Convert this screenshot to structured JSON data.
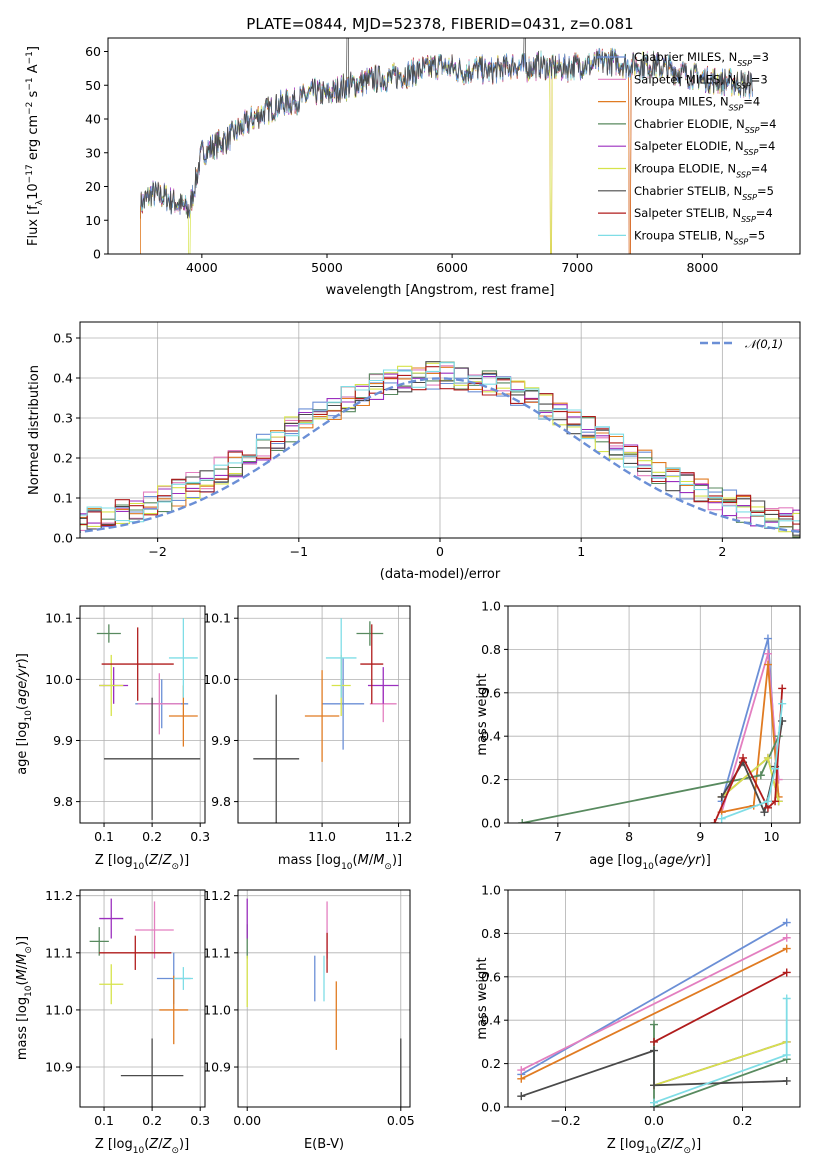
{
  "chart_data": [
    {
      "type": "line",
      "title": "PLATE=0844, MJD=52378, FIBERID=0431, z=0.081",
      "xlabel": "wavelength [Angstrom, rest frame]",
      "ylabel": "Flux [f_λ10^-17 erg cm^-2 s^-1 A^-1]",
      "xlim": [
        3250,
        8780
      ],
      "ylim": [
        0,
        64
      ],
      "xticks": [
        4000,
        5000,
        6000,
        7000,
        8000
      ],
      "yticks": [
        0,
        10,
        20,
        30,
        40,
        50,
        60
      ],
      "legend_position": "upper right",
      "grid": false,
      "legend": [
        {
          "label": "Chabrier MILES, N_SSP=3",
          "color": "#6b8fd6"
        },
        {
          "label": "Salpeter MILES, N_SSP=3",
          "color": "#e37fc0"
        },
        {
          "label": "Kroupa MILES, N_SSP=4",
          "color": "#e07b22"
        },
        {
          "label": "Chabrier ELODIE, N_SSP=4",
          "color": "#588a5f"
        },
        {
          "label": "Salpeter ELODIE, N_SSP=4",
          "color": "#9b2fbf"
        },
        {
          "label": "Kroupa ELODIE, N_SSP=4",
          "color": "#d6e34a"
        },
        {
          "label": "Chabrier STELIB, N_SSP=5",
          "color": "#4a4a4a"
        },
        {
          "label": "Salpeter STELIB, N_SSP=4",
          "color": "#b01c1c"
        },
        {
          "label": "Kroupa STELIB, N_SSP=5",
          "color": "#7fdde6"
        }
      ],
      "continuum_samples": {
        "x": [
          3500,
          3600,
          3700,
          3800,
          3900,
          4000,
          4100,
          4200,
          4300,
          4400,
          4500,
          4600,
          4700,
          4800,
          4900,
          5000,
          5100,
          5200,
          5300,
          5400,
          5500,
          5600,
          5700,
          5800,
          5900,
          6000,
          6100,
          6200,
          6300,
          6400,
          6500,
          6600,
          6700,
          6800,
          6900,
          7000,
          7100,
          7200,
          7300,
          7400,
          7600,
          7800,
          8000,
          8200,
          8400
        ],
        "y": [
          14,
          18,
          17,
          15,
          13,
          30,
          32,
          34,
          37,
          40,
          42,
          44,
          45,
          46,
          48,
          47,
          49,
          50,
          51,
          52,
          52,
          53,
          54,
          55,
          56,
          55,
          54,
          55,
          54,
          55,
          56,
          55,
          56,
          55,
          55,
          56,
          56,
          57,
          57,
          56,
          56,
          54,
          52,
          51,
          50
        ]
      }
    },
    {
      "type": "histogram",
      "xlabel": "(data-model)/error",
      "ylabel": "Normed distribution",
      "xlim": [
        -2.55,
        2.55
      ],
      "ylim": [
        0,
        0.54
      ],
      "xticks": [
        -2,
        -1,
        0,
        1,
        2
      ],
      "yticks": [
        0.0,
        0.1,
        0.2,
        0.3,
        0.4,
        0.5
      ],
      "grid": true,
      "legend": "𝒩(0,1)",
      "bin_width": 0.1,
      "bins_from": -2.6,
      "bins_to": 2.6,
      "reference_curve": {
        "name": "𝒩(0,1)",
        "color": "#6b8fd6",
        "style": "dashed"
      },
      "series_colors": [
        "#6b8fd6",
        "#e37fc0",
        "#e07b22",
        "#588a5f",
        "#9b2fbf",
        "#d6e34a",
        "#4a4a4a",
        "#b01c1c",
        "#7fdde6"
      ]
    },
    {
      "type": "scatter",
      "xlabel": "Z [log10(Z/Z⊙)]",
      "ylabel": "age  [log10(age/yr)]",
      "xlim": [
        0.05,
        0.31
      ],
      "ylim": [
        9.765,
        10.12
      ],
      "xticks": [
        0.1,
        0.2,
        0.3
      ],
      "yticks": [
        9.8,
        9.9,
        10.0,
        10.1
      ],
      "grid": true,
      "points": [
        {
          "x": 0.22,
          "y": 9.96,
          "xerr": 0.055,
          "yerr": 0.04,
          "color": "#6b8fd6"
        },
        {
          "x": 0.215,
          "y": 9.96,
          "xerr": 0.045,
          "yerr": 0.05,
          "color": "#e37fc0"
        },
        {
          "x": 0.265,
          "y": 9.94,
          "xerr": 0.03,
          "yerr": 0.05,
          "color": "#e07b22"
        },
        {
          "x": 0.11,
          "y": 10.075,
          "xerr": 0.025,
          "yerr": 0.015,
          "color": "#588a5f"
        },
        {
          "x": 0.12,
          "y": 9.99,
          "xerr": 0.03,
          "yerr": 0.03,
          "color": "#9b2fbf"
        },
        {
          "x": 0.115,
          "y": 9.99,
          "xerr": 0.025,
          "yerr": 0.05,
          "color": "#d6e34a"
        },
        {
          "x": 0.2,
          "y": 9.87,
          "xerr": 0.1,
          "yerr": 0.1,
          "color": "#4a4a4a"
        },
        {
          "x": 0.17,
          "y": 10.025,
          "xerr": 0.075,
          "yerr": 0.06,
          "color": "#b01c1c"
        },
        {
          "x": 0.265,
          "y": 10.035,
          "xerr": 0.03,
          "yerr": 0.065,
          "color": "#7fdde6"
        }
      ]
    },
    {
      "type": "scatter",
      "xlabel": "mass [log10(M/M⊙)]",
      "xlim": [
        10.78,
        11.23
      ],
      "ylim": [
        9.765,
        10.12
      ],
      "xticks": [
        11.0,
        11.2
      ],
      "yticks": [
        9.8,
        9.9,
        10.0,
        10.1
      ],
      "grid": true,
      "points": [
        {
          "x": 11.055,
          "y": 9.96,
          "xerr": 0.055,
          "yerr": 0.075,
          "color": "#6b8fd6"
        },
        {
          "x": 11.16,
          "y": 9.96,
          "xerr": 0.035,
          "yerr": 0.03,
          "color": "#e37fc0"
        },
        {
          "x": 11.0,
          "y": 9.94,
          "xerr": 0.045,
          "yerr": 0.075,
          "color": "#e07b22"
        },
        {
          "x": 11.125,
          "y": 10.075,
          "xerr": 0.035,
          "yerr": 0.02,
          "color": "#588a5f"
        },
        {
          "x": 11.16,
          "y": 9.99,
          "xerr": 0.04,
          "yerr": 0.03,
          "color": "#9b2fbf"
        },
        {
          "x": 11.05,
          "y": 9.99,
          "xerr": 0.025,
          "yerr": 0.05,
          "color": "#d6e34a"
        },
        {
          "x": 10.88,
          "y": 9.87,
          "xerr": 0.06,
          "yerr": 0.105,
          "color": "#4a4a4a"
        },
        {
          "x": 11.13,
          "y": 10.025,
          "xerr": 0.03,
          "yerr": 0.065,
          "color": "#b01c1c"
        },
        {
          "x": 11.05,
          "y": 10.035,
          "xerr": 0.04,
          "yerr": 0.065,
          "color": "#7fdde6"
        }
      ]
    },
    {
      "type": "line",
      "xlabel": "age  [log10(age/yr)]",
      "ylabel": "mass weight",
      "xlim": [
        6.3,
        10.4
      ],
      "ylim": [
        0,
        1.0
      ],
      "xticks": [
        7,
        8,
        9,
        10
      ],
      "yticks": [
        0.0,
        0.2,
        0.4,
        0.6,
        0.8,
        1.0
      ],
      "grid": true,
      "series": [
        {
          "x": [
            9.3,
            9.95,
            10.1
          ],
          "y": [
            0.1,
            0.85,
            0.1
          ],
          "color": "#6b8fd6"
        },
        {
          "x": [
            9.3,
            9.95,
            10.1
          ],
          "y": [
            0.05,
            0.78,
            0.2
          ],
          "color": "#e37fc0"
        },
        {
          "x": [
            9.3,
            9.75,
            9.95,
            10.1
          ],
          "y": [
            0.05,
            0.08,
            0.73,
            0.12
          ],
          "color": "#e07b22"
        },
        {
          "x": [
            6.5,
            9.85,
            10.1
          ],
          "y": [
            0.0,
            0.22,
            0.4
          ],
          "color": "#588a5f"
        },
        {
          "x": [
            9.3,
            9.95,
            10.1
          ],
          "y": [
            0.12,
            0.3,
            0.1
          ],
          "color": "#9b2fbf"
        },
        {
          "x": [
            9.3,
            9.95,
            10.1
          ],
          "y": [
            0.12,
            0.3,
            0.1
          ],
          "color": "#d6e34a"
        },
        {
          "x": [
            9.3,
            9.6,
            9.9,
            10.05,
            10.15
          ],
          "y": [
            0.12,
            0.28,
            0.05,
            0.26,
            0.47
          ],
          "color": "#4a4a4a"
        },
        {
          "x": [
            9.2,
            9.6,
            9.95,
            10.05,
            10.15
          ],
          "y": [
            0.0,
            0.3,
            0.07,
            0.1,
            0.62
          ],
          "color": "#b01c1c"
        },
        {
          "x": [
            9.3,
            9.95,
            10.05,
            10.15
          ],
          "y": [
            0.02,
            0.1,
            0.25,
            0.55
          ],
          "color": "#7fdde6"
        }
      ]
    },
    {
      "type": "scatter",
      "xlabel": "Z [log10(Z/Z⊙)]",
      "ylabel": "mass [log10(M/M⊙)]",
      "xlim": [
        0.05,
        0.31
      ],
      "ylim": [
        10.83,
        11.21
      ],
      "xticks": [
        0.1,
        0.2,
        0.3
      ],
      "yticks": [
        10.9,
        11.0,
        11.1,
        11.2
      ],
      "grid": true,
      "points": [
        {
          "x": 0.245,
          "y": 11.055,
          "xerr": 0.035,
          "yerr": 0.045,
          "color": "#6b8fd6"
        },
        {
          "x": 0.205,
          "y": 11.14,
          "xerr": 0.04,
          "yerr": 0.05,
          "color": "#e37fc0"
        },
        {
          "x": 0.245,
          "y": 11.0,
          "xerr": 0.03,
          "yerr": 0.06,
          "color": "#e07b22"
        },
        {
          "x": 0.09,
          "y": 11.12,
          "xerr": 0.02,
          "yerr": 0.025,
          "color": "#588a5f"
        },
        {
          "x": 0.115,
          "y": 11.16,
          "xerr": 0.025,
          "yerr": 0.035,
          "color": "#9b2fbf"
        },
        {
          "x": 0.115,
          "y": 11.045,
          "xerr": 0.025,
          "yerr": 0.035,
          "color": "#d6e34a"
        },
        {
          "x": 0.2,
          "y": 10.885,
          "xerr": 0.065,
          "yerr": 0.065,
          "color": "#4a4a4a"
        },
        {
          "x": 0.165,
          "y": 11.1,
          "xerr": 0.075,
          "yerr": 0.03,
          "color": "#b01c1c"
        },
        {
          "x": 0.265,
          "y": 11.055,
          "xerr": 0.02,
          "yerr": 0.02,
          "color": "#7fdde6"
        }
      ]
    },
    {
      "type": "scatter",
      "xlabel": "E(B-V)",
      "xlim": [
        -0.003,
        0.053
      ],
      "ylim": [
        10.83,
        11.21
      ],
      "xticks": [
        0.0,
        0.05
      ],
      "yticks": [
        10.9,
        11.0,
        11.1,
        11.2
      ],
      "grid": true,
      "points": [
        {
          "x": 0.022,
          "y": 11.055,
          "yerr": 0.04,
          "color": "#6b8fd6"
        },
        {
          "x": 0.026,
          "y": 11.14,
          "yerr": 0.05,
          "color": "#e37fc0"
        },
        {
          "x": 0.029,
          "y": 10.99,
          "yerr": 0.06,
          "color": "#e07b22"
        },
        {
          "x": 0.0,
          "y": 11.12,
          "yerr": 0.03,
          "color": "#588a5f"
        },
        {
          "x": 0.0,
          "y": 11.16,
          "yerr": 0.035,
          "color": "#9b2fbf"
        },
        {
          "x": 0.0,
          "y": 11.05,
          "yerr": 0.045,
          "color": "#d6e34a"
        },
        {
          "x": 0.05,
          "y": 10.885,
          "yerr": 0.065,
          "color": "#4a4a4a"
        },
        {
          "x": 0.026,
          "y": 11.1,
          "yerr": 0.035,
          "color": "#b01c1c"
        },
        {
          "x": 0.025,
          "y": 11.055,
          "yerr": 0.04,
          "color": "#7fdde6"
        }
      ]
    },
    {
      "type": "line",
      "xlabel": "Z [log10(Z/Z⊙)]",
      "ylabel": "mass weight",
      "xlim": [
        -0.33,
        0.33
      ],
      "ylim": [
        0,
        1.0
      ],
      "xticks": [
        -0.2,
        0.0,
        0.2
      ],
      "yticks": [
        0.0,
        0.2,
        0.4,
        0.6,
        0.8,
        1.0
      ],
      "grid": true,
      "series": [
        {
          "x": [
            -0.3,
            0.3
          ],
          "y": [
            0.15,
            0.85
          ],
          "color": "#6b8fd6"
        },
        {
          "x": [
            -0.3,
            0.3
          ],
          "y": [
            0.17,
            0.78
          ],
          "color": "#e37fc0"
        },
        {
          "x": [
            -0.3,
            0.3
          ],
          "y": [
            0.13,
            0.73
          ],
          "color": "#e07b22"
        },
        {
          "x": [
            0.0,
            0.0,
            0.3
          ],
          "y": [
            0.38,
            0.0,
            0.22
          ],
          "color": "#588a5f"
        },
        {
          "x": [
            0.0,
            0.3
          ],
          "y": [
            0.1,
            0.3
          ],
          "color": "#9b2fbf"
        },
        {
          "x": [
            0.0,
            0.3
          ],
          "y": [
            0.1,
            0.3
          ],
          "color": "#d6e34a"
        },
        {
          "x": [
            -0.3,
            0.0,
            0.0,
            0.3
          ],
          "y": [
            0.05,
            0.26,
            0.1,
            0.12
          ],
          "color": "#4a4a4a"
        },
        {
          "x": [
            0.0,
            0.3
          ],
          "y": [
            0.3,
            0.62
          ],
          "color": "#b01c1c"
        },
        {
          "x": [
            0.0,
            0.3,
            0.3
          ],
          "y": [
            0.02,
            0.24,
            0.5
          ],
          "color": "#7fdde6"
        }
      ]
    }
  ]
}
